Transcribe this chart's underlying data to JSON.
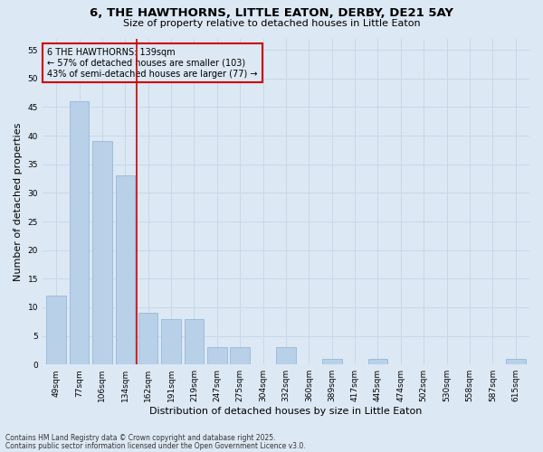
{
  "title": "6, THE HAWTHORNS, LITTLE EATON, DERBY, DE21 5AY",
  "subtitle": "Size of property relative to detached houses in Little Eaton",
  "xlabel": "Distribution of detached houses by size in Little Eaton",
  "ylabel": "Number of detached properties",
  "categories": [
    "49sqm",
    "77sqm",
    "106sqm",
    "134sqm",
    "162sqm",
    "191sqm",
    "219sqm",
    "247sqm",
    "275sqm",
    "304sqm",
    "332sqm",
    "360sqm",
    "389sqm",
    "417sqm",
    "445sqm",
    "474sqm",
    "502sqm",
    "530sqm",
    "558sqm",
    "587sqm",
    "615sqm"
  ],
  "values": [
    12,
    46,
    39,
    33,
    9,
    8,
    8,
    3,
    3,
    0,
    3,
    0,
    1,
    0,
    1,
    0,
    0,
    0,
    0,
    0,
    1
  ],
  "bar_color": "#b8d0e8",
  "bar_edgecolor": "#8ab4d4",
  "grid_color": "#c8d8e8",
  "background_color": "#dce8f4",
  "vline_x": 3.5,
  "vline_color": "#cc0000",
  "annotation_text": "6 THE HAWTHORNS: 139sqm\n← 57% of detached houses are smaller (103)\n43% of semi-detached houses are larger (77) →",
  "annotation_box_edgecolor": "#cc0000",
  "ylim": [
    0,
    57
  ],
  "yticks": [
    0,
    5,
    10,
    15,
    20,
    25,
    30,
    35,
    40,
    45,
    50,
    55
  ],
  "footer1": "Contains HM Land Registry data © Crown copyright and database right 2025.",
  "footer2": "Contains public sector information licensed under the Open Government Licence v3.0.",
  "title_fontsize": 9.5,
  "subtitle_fontsize": 8,
  "tick_fontsize": 6.5,
  "label_fontsize": 8,
  "annotation_fontsize": 7,
  "footer_fontsize": 5.5
}
